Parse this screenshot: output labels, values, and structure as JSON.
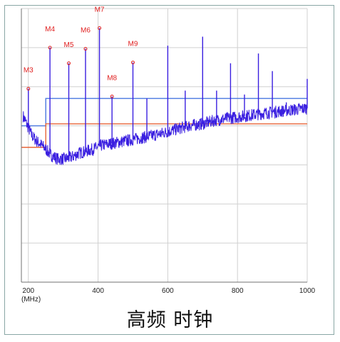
{
  "caption": "高频 时钟",
  "colors": {
    "trace": "#3a1fe0",
    "peak": "#3a1fe0",
    "limit_blue": "#4a78e0",
    "limit_orange": "#e8663a",
    "marker": "#e02020",
    "grid": "#d0d0d0",
    "axis": "#707070"
  },
  "chart_data": {
    "type": "line",
    "title": "高频 时钟",
    "x_axis": {
      "ticks": [
        200,
        400,
        600,
        800,
        1000
      ],
      "unit_label": "(MHz)",
      "range": [
        180,
        1000
      ]
    },
    "y_axis": {
      "range": [
        0,
        7
      ],
      "grid_lines": [
        1,
        2,
        3,
        4,
        5,
        6,
        7
      ]
    },
    "grid": true,
    "series": [
      {
        "name": "",
        "kind": "noise-floor",
        "x": [
          180,
          195,
          210,
          225,
          245,
          265,
          285,
          305,
          325,
          345,
          365,
          385,
          410,
          440,
          470,
          500,
          540,
          580,
          620,
          660,
          700,
          740,
          780,
          820,
          860,
          900,
          950,
          1000
        ],
        "y": [
          4.35,
          4.05,
          3.75,
          3.6,
          3.45,
          3.25,
          3.15,
          3.15,
          3.2,
          3.3,
          3.35,
          3.4,
          3.5,
          3.55,
          3.6,
          3.65,
          3.72,
          3.8,
          3.9,
          4.0,
          4.05,
          4.15,
          4.2,
          4.25,
          4.3,
          4.35,
          4.4,
          4.45
        ]
      },
      {
        "name": "",
        "kind": "limit-line",
        "color": "blue",
        "x": [
          180,
          250,
          250,
          1000
        ],
        "y": [
          4.0,
          4.0,
          4.7,
          4.7
        ]
      },
      {
        "name": "",
        "kind": "limit-line",
        "color": "orange",
        "x": [
          180,
          250,
          250,
          1000
        ],
        "y": [
          3.45,
          3.45,
          4.05,
          4.05
        ]
      }
    ],
    "peaks": [
      {
        "x": 200,
        "y": 4.95
      },
      {
        "x": 262,
        "y": 6.0
      },
      {
        "x": 316,
        "y": 5.6
      },
      {
        "x": 364,
        "y": 5.97
      },
      {
        "x": 404,
        "y": 6.5
      },
      {
        "x": 440,
        "y": 4.75
      },
      {
        "x": 500,
        "y": 5.62
      },
      {
        "x": 540,
        "y": 4.7
      },
      {
        "x": 600,
        "y": 6.05
      },
      {
        "x": 650,
        "y": 4.9
      },
      {
        "x": 700,
        "y": 6.28
      },
      {
        "x": 740,
        "y": 4.9
      },
      {
        "x": 780,
        "y": 5.6
      },
      {
        "x": 820,
        "y": 4.8
      },
      {
        "x": 860,
        "y": 5.85
      },
      {
        "x": 900,
        "y": 5.4
      },
      {
        "x": 940,
        "y": 4.6
      },
      {
        "x": 1000,
        "y": 5.2
      }
    ],
    "markers": [
      {
        "label": "M3",
        "x": 200,
        "y": 4.95
      },
      {
        "label": "M4",
        "x": 262,
        "y": 6.0
      },
      {
        "label": "M5",
        "x": 316,
        "y": 5.6
      },
      {
        "label": "M6",
        "x": 364,
        "y": 5.97
      },
      {
        "label": "M7",
        "x": 404,
        "y": 6.5
      },
      {
        "label": "M8",
        "x": 440,
        "y": 4.75
      },
      {
        "label": "M9",
        "x": 500,
        "y": 5.62
      }
    ]
  }
}
